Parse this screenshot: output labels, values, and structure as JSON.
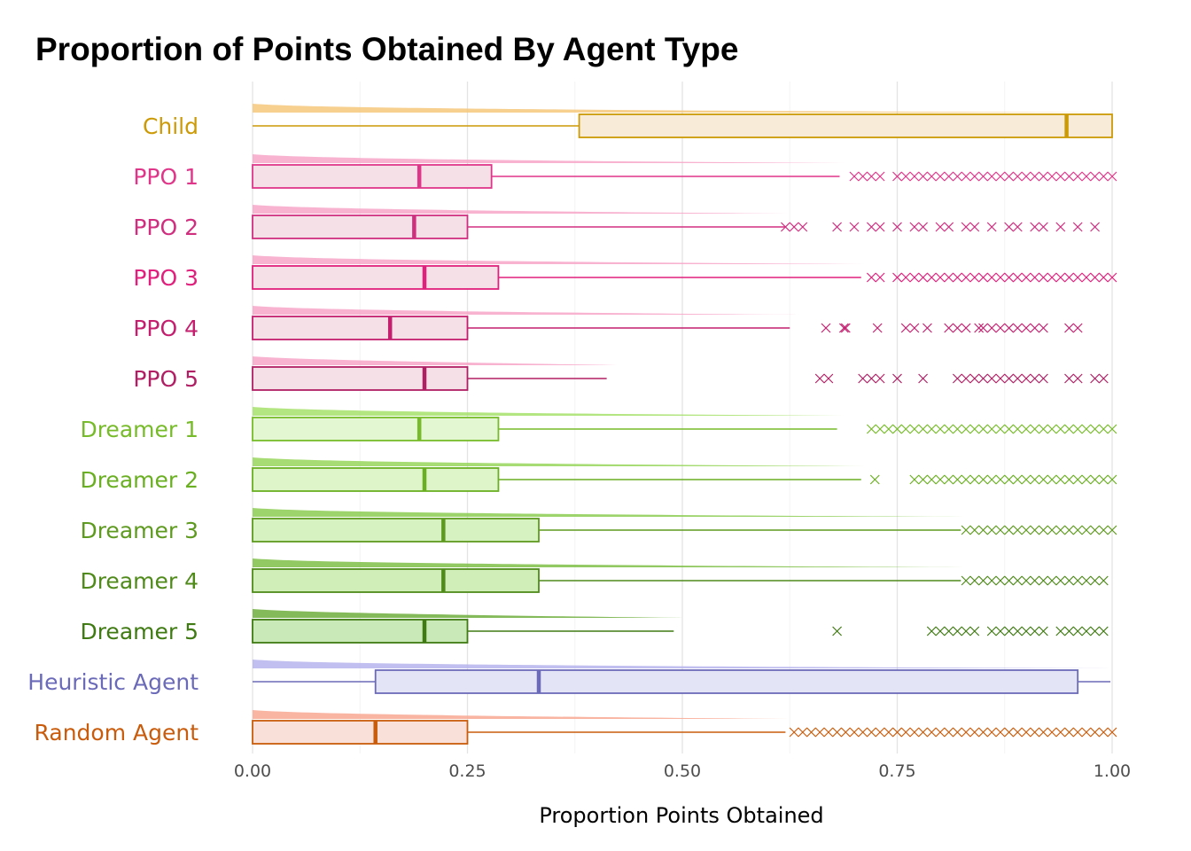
{
  "chart_data": {
    "type": "box",
    "title": "Proportion of Points Obtained By Agent Type",
    "xlabel": "Proportion Points Obtained",
    "ylabel": "",
    "xlim": [
      0,
      1
    ],
    "x_ticks": [
      "0.00",
      "0.25",
      "0.50",
      "0.75",
      "1.00"
    ],
    "x_tick_values": [
      0,
      0.25,
      0.5,
      0.75,
      1.0
    ],
    "grid": true,
    "legend": "none",
    "series": [
      {
        "name": "Child",
        "color": "#cc9a06",
        "fill": "#f8ecd9",
        "density": "#f6c77a",
        "q1": 0.38,
        "median": 0.947,
        "q3": 1.0,
        "whisker_low": 0.0,
        "whisker_high": 1.0,
        "outliers": []
      },
      {
        "name": "PPO 1",
        "color": "#e0368a",
        "fill": "#f5e0e7",
        "density": "#f7a6c9",
        "q1": 0.0,
        "median": 0.194,
        "q3": 0.278,
        "whisker_low": 0.0,
        "whisker_high": 0.683,
        "outliers": [
          0.7,
          0.71,
          0.72,
          0.73,
          0.75,
          0.76,
          0.77,
          0.78,
          0.79,
          0.8,
          0.81,
          0.82,
          0.83,
          0.84,
          0.85,
          0.86,
          0.87,
          0.88,
          0.89,
          0.9,
          0.91,
          0.92,
          0.93,
          0.94,
          0.95,
          0.96,
          0.97,
          0.98,
          0.99,
          1.0
        ]
      },
      {
        "name": "PPO 2",
        "color": "#d02f80",
        "fill": "#f5e0e7",
        "density": "#f7a6c9",
        "q1": 0.0,
        "median": 0.188,
        "q3": 0.25,
        "whisker_low": 0.0,
        "whisker_high": 0.619,
        "outliers": [
          0.62,
          0.63,
          0.64,
          0.68,
          0.7,
          0.72,
          0.73,
          0.75,
          0.77,
          0.78,
          0.8,
          0.81,
          0.83,
          0.84,
          0.86,
          0.88,
          0.89,
          0.91,
          0.92,
          0.94,
          0.96,
          0.98
        ]
      },
      {
        "name": "PPO 3",
        "color": "#e0207c",
        "fill": "#f5e0e7",
        "density": "#f7a6c9",
        "q1": 0.0,
        "median": 0.2,
        "q3": 0.286,
        "whisker_low": 0.0,
        "whisker_high": 0.708,
        "outliers": [
          0.72,
          0.73,
          0.75,
          0.76,
          0.77,
          0.78,
          0.79,
          0.8,
          0.81,
          0.82,
          0.83,
          0.84,
          0.85,
          0.86,
          0.87,
          0.88,
          0.89,
          0.9,
          0.91,
          0.92,
          0.93,
          0.94,
          0.95,
          0.96,
          0.97,
          0.98,
          0.99,
          1.0
        ]
      },
      {
        "name": "PPO 4",
        "color": "#c41f6f",
        "fill": "#f5e0e7",
        "density": "#f7a6c9",
        "q1": 0.0,
        "median": 0.16,
        "q3": 0.25,
        "whisker_low": 0.0,
        "whisker_high": 0.625,
        "outliers": [
          0.667,
          0.688,
          0.69,
          0.727,
          0.76,
          0.77,
          0.785,
          0.81,
          0.82,
          0.83,
          0.845,
          0.85,
          0.86,
          0.87,
          0.88,
          0.89,
          0.9,
          0.91,
          0.92,
          0.95,
          0.96
        ]
      },
      {
        "name": "PPO 5",
        "color": "#b01f64",
        "fill": "#f5e0e7",
        "density": "#f7a6c9",
        "q1": 0.0,
        "median": 0.2,
        "q3": 0.25,
        "whisker_low": 0.0,
        "whisker_high": 0.412,
        "outliers": [
          0.66,
          0.67,
          0.71,
          0.72,
          0.73,
          0.75,
          0.78,
          0.82,
          0.83,
          0.84,
          0.85,
          0.86,
          0.87,
          0.88,
          0.89,
          0.9,
          0.91,
          0.92,
          0.95,
          0.96,
          0.98,
          0.99
        ]
      },
      {
        "name": "Dreamer 1",
        "color": "#77bb2a",
        "fill": "#e3f7d2",
        "density": "#a6e06a",
        "q1": 0.0,
        "median": 0.194,
        "q3": 0.286,
        "whisker_low": 0.0,
        "whisker_high": 0.68,
        "outliers": [
          0.72,
          0.73,
          0.74,
          0.75,
          0.76,
          0.77,
          0.78,
          0.79,
          0.8,
          0.81,
          0.82,
          0.83,
          0.84,
          0.85,
          0.86,
          0.87,
          0.88,
          0.89,
          0.9,
          0.91,
          0.92,
          0.93,
          0.94,
          0.95,
          0.96,
          0.97,
          0.98,
          0.99,
          1.0
        ]
      },
      {
        "name": "Dreamer 2",
        "color": "#6aaf22",
        "fill": "#ddf5c8",
        "density": "#98d65c",
        "q1": 0.0,
        "median": 0.2,
        "q3": 0.286,
        "whisker_low": 0.0,
        "whisker_high": 0.708,
        "outliers": [
          0.724,
          0.77,
          0.78,
          0.79,
          0.8,
          0.81,
          0.82,
          0.83,
          0.84,
          0.85,
          0.86,
          0.87,
          0.88,
          0.89,
          0.9,
          0.91,
          0.92,
          0.93,
          0.94,
          0.95,
          0.96,
          0.97,
          0.98,
          0.99,
          1.0
        ]
      },
      {
        "name": "Dreamer 3",
        "color": "#5e9a1f",
        "fill": "#d6f2c0",
        "density": "#8ccc52",
        "q1": 0.0,
        "median": 0.222,
        "q3": 0.333,
        "whisker_low": 0.0,
        "whisker_high": 0.824,
        "outliers": [
          0.83,
          0.84,
          0.85,
          0.86,
          0.87,
          0.88,
          0.89,
          0.9,
          0.91,
          0.92,
          0.93,
          0.94,
          0.95,
          0.96,
          0.97,
          0.98,
          0.99,
          1.0
        ]
      },
      {
        "name": "Dreamer 4",
        "color": "#4f8a1a",
        "fill": "#d0efb8",
        "density": "#80c048",
        "q1": 0.0,
        "median": 0.222,
        "q3": 0.333,
        "whisker_low": 0.0,
        "whisker_high": 0.824,
        "outliers": [
          0.83,
          0.84,
          0.85,
          0.86,
          0.87,
          0.88,
          0.89,
          0.9,
          0.91,
          0.92,
          0.93,
          0.94,
          0.95,
          0.96,
          0.97,
          0.98,
          0.99
        ]
      },
      {
        "name": "Dreamer 5",
        "color": "#3f7a12",
        "fill": "#c9e9b8",
        "density": "#6fae3c",
        "q1": 0.0,
        "median": 0.2,
        "q3": 0.25,
        "whisker_low": 0.0,
        "whisker_high": 0.49,
        "outliers": [
          0.68,
          0.79,
          0.8,
          0.81,
          0.82,
          0.83,
          0.84,
          0.86,
          0.87,
          0.88,
          0.89,
          0.9,
          0.91,
          0.92,
          0.94,
          0.95,
          0.96,
          0.97,
          0.98,
          0.99
        ]
      },
      {
        "name": "Heuristic Agent",
        "color": "#6b6ab8",
        "fill": "#e4e4f7",
        "density": "#b6b4ec",
        "q1": 0.143,
        "median": 0.333,
        "q3": 0.96,
        "whisker_low": 0.0,
        "whisker_high": 0.998,
        "outliers": []
      },
      {
        "name": "Random Agent",
        "color": "#c95c0c",
        "fill": "#f9e0d9",
        "density": "#f9a792",
        "q1": 0.0,
        "median": 0.143,
        "q3": 0.25,
        "whisker_low": 0.0,
        "whisker_high": 0.62,
        "outliers": [
          0.63,
          0.64,
          0.65,
          0.66,
          0.67,
          0.68,
          0.69,
          0.7,
          0.71,
          0.72,
          0.73,
          0.74,
          0.75,
          0.76,
          0.77,
          0.78,
          0.79,
          0.8,
          0.81,
          0.82,
          0.83,
          0.84,
          0.85,
          0.86,
          0.87,
          0.88,
          0.89,
          0.9,
          0.91,
          0.92,
          0.93,
          0.94,
          0.95,
          0.96,
          0.97,
          0.98,
          0.99,
          1.0
        ]
      }
    ]
  }
}
